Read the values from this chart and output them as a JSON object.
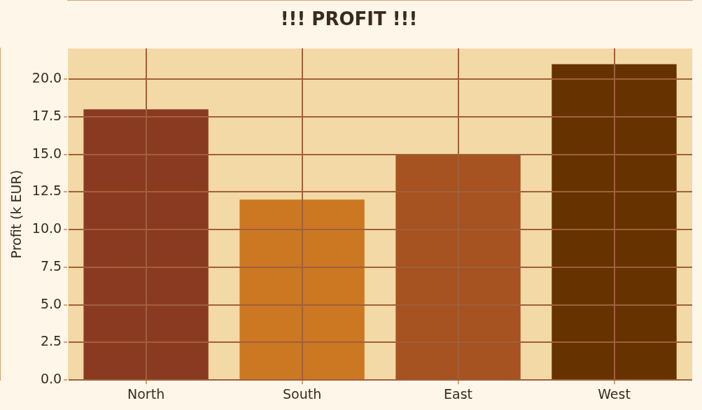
{
  "chart_data": {
    "type": "bar",
    "title": "!!! PROFIT !!!",
    "ylabel": "Profit (k EUR)",
    "categories": [
      "North",
      "South",
      "East",
      "West"
    ],
    "values": [
      18,
      12,
      15,
      21
    ],
    "colors": [
      "#8b3a22",
      "#cc7722",
      "#a65221",
      "#663300"
    ],
    "ylim": [
      0,
      22.05
    ],
    "yticks": [
      {
        "value": 0,
        "label": "0.0"
      },
      {
        "value": 2.5,
        "label": "2.5"
      },
      {
        "value": 5,
        "label": "5.0"
      },
      {
        "value": 7.5,
        "label": "7.5"
      },
      {
        "value": 10,
        "label": "10.0"
      },
      {
        "value": 12.5,
        "label": "12.5"
      },
      {
        "value": 15,
        "label": "15.0"
      },
      {
        "value": 17.5,
        "label": "17.5"
      },
      {
        "value": 20,
        "label": "20.0"
      }
    ],
    "grid": true,
    "legend": false
  }
}
